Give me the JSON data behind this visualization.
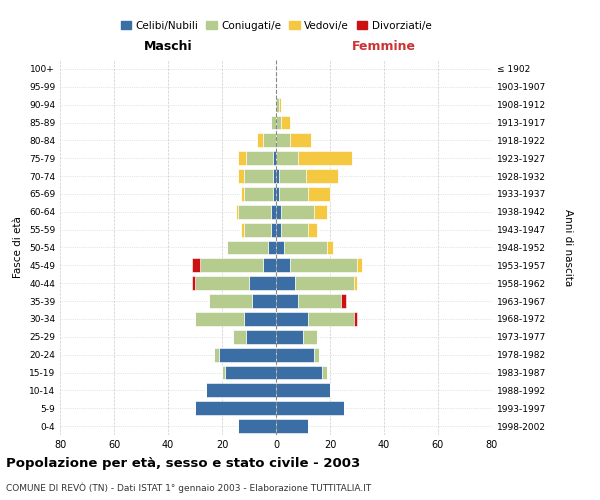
{
  "age_groups": [
    "0-4",
    "5-9",
    "10-14",
    "15-19",
    "20-24",
    "25-29",
    "30-34",
    "35-39",
    "40-44",
    "45-49",
    "50-54",
    "55-59",
    "60-64",
    "65-69",
    "70-74",
    "75-79",
    "80-84",
    "85-89",
    "90-94",
    "95-99",
    "100+"
  ],
  "birth_years": [
    "1998-2002",
    "1993-1997",
    "1988-1992",
    "1983-1987",
    "1978-1982",
    "1973-1977",
    "1968-1972",
    "1963-1967",
    "1958-1962",
    "1953-1957",
    "1948-1952",
    "1943-1947",
    "1938-1942",
    "1933-1937",
    "1928-1932",
    "1923-1927",
    "1918-1922",
    "1913-1917",
    "1908-1912",
    "1903-1907",
    "≤ 1902"
  ],
  "maschi": {
    "celibi": [
      14,
      30,
      26,
      19,
      21,
      11,
      12,
      9,
      10,
      5,
      3,
      2,
      2,
      1,
      1,
      1,
      0,
      0,
      0,
      0,
      0
    ],
    "coniugati": [
      0,
      0,
      0,
      1,
      2,
      5,
      18,
      16,
      20,
      23,
      15,
      10,
      12,
      11,
      11,
      10,
      5,
      2,
      0,
      0,
      0
    ],
    "vedovi": [
      0,
      0,
      0,
      0,
      0,
      0,
      0,
      0,
      0,
      0,
      0,
      1,
      1,
      1,
      2,
      3,
      2,
      0,
      0,
      0,
      0
    ],
    "divorziati": [
      0,
      0,
      0,
      0,
      0,
      0,
      0,
      0,
      1,
      3,
      0,
      0,
      0,
      0,
      0,
      0,
      0,
      0,
      0,
      0,
      0
    ]
  },
  "femmine": {
    "nubili": [
      12,
      25,
      20,
      17,
      14,
      10,
      12,
      8,
      7,
      5,
      3,
      2,
      2,
      1,
      1,
      0,
      0,
      0,
      0,
      0,
      0
    ],
    "coniugate": [
      0,
      0,
      0,
      2,
      2,
      5,
      17,
      16,
      22,
      25,
      16,
      10,
      12,
      11,
      10,
      8,
      5,
      2,
      1,
      0,
      0
    ],
    "vedove": [
      0,
      0,
      0,
      0,
      0,
      0,
      0,
      0,
      1,
      2,
      2,
      3,
      5,
      8,
      12,
      20,
      8,
      3,
      1,
      0,
      0
    ],
    "divorziate": [
      0,
      0,
      0,
      0,
      0,
      0,
      1,
      2,
      0,
      0,
      0,
      0,
      0,
      0,
      0,
      0,
      0,
      0,
      0,
      0,
      0
    ]
  },
  "colors": {
    "celibi_nubili": "#3a6ea5",
    "coniugati": "#b5cc8e",
    "vedovi": "#f5c842",
    "divorziati": "#cc1111"
  },
  "title": "Popolazione per età, sesso e stato civile - 2003",
  "subtitle": "COMUNE DI REVÒ (TN) - Dati ISTAT 1° gennaio 2003 - Elaborazione TUTTITALIA.IT",
  "xlabel_left": "Maschi",
  "xlabel_right": "Femmine",
  "ylabel_left": "Fasce di età",
  "ylabel_right": "Anni di nascita",
  "xlim": 80,
  "background_color": "#ffffff",
  "grid_color": "#cccccc"
}
